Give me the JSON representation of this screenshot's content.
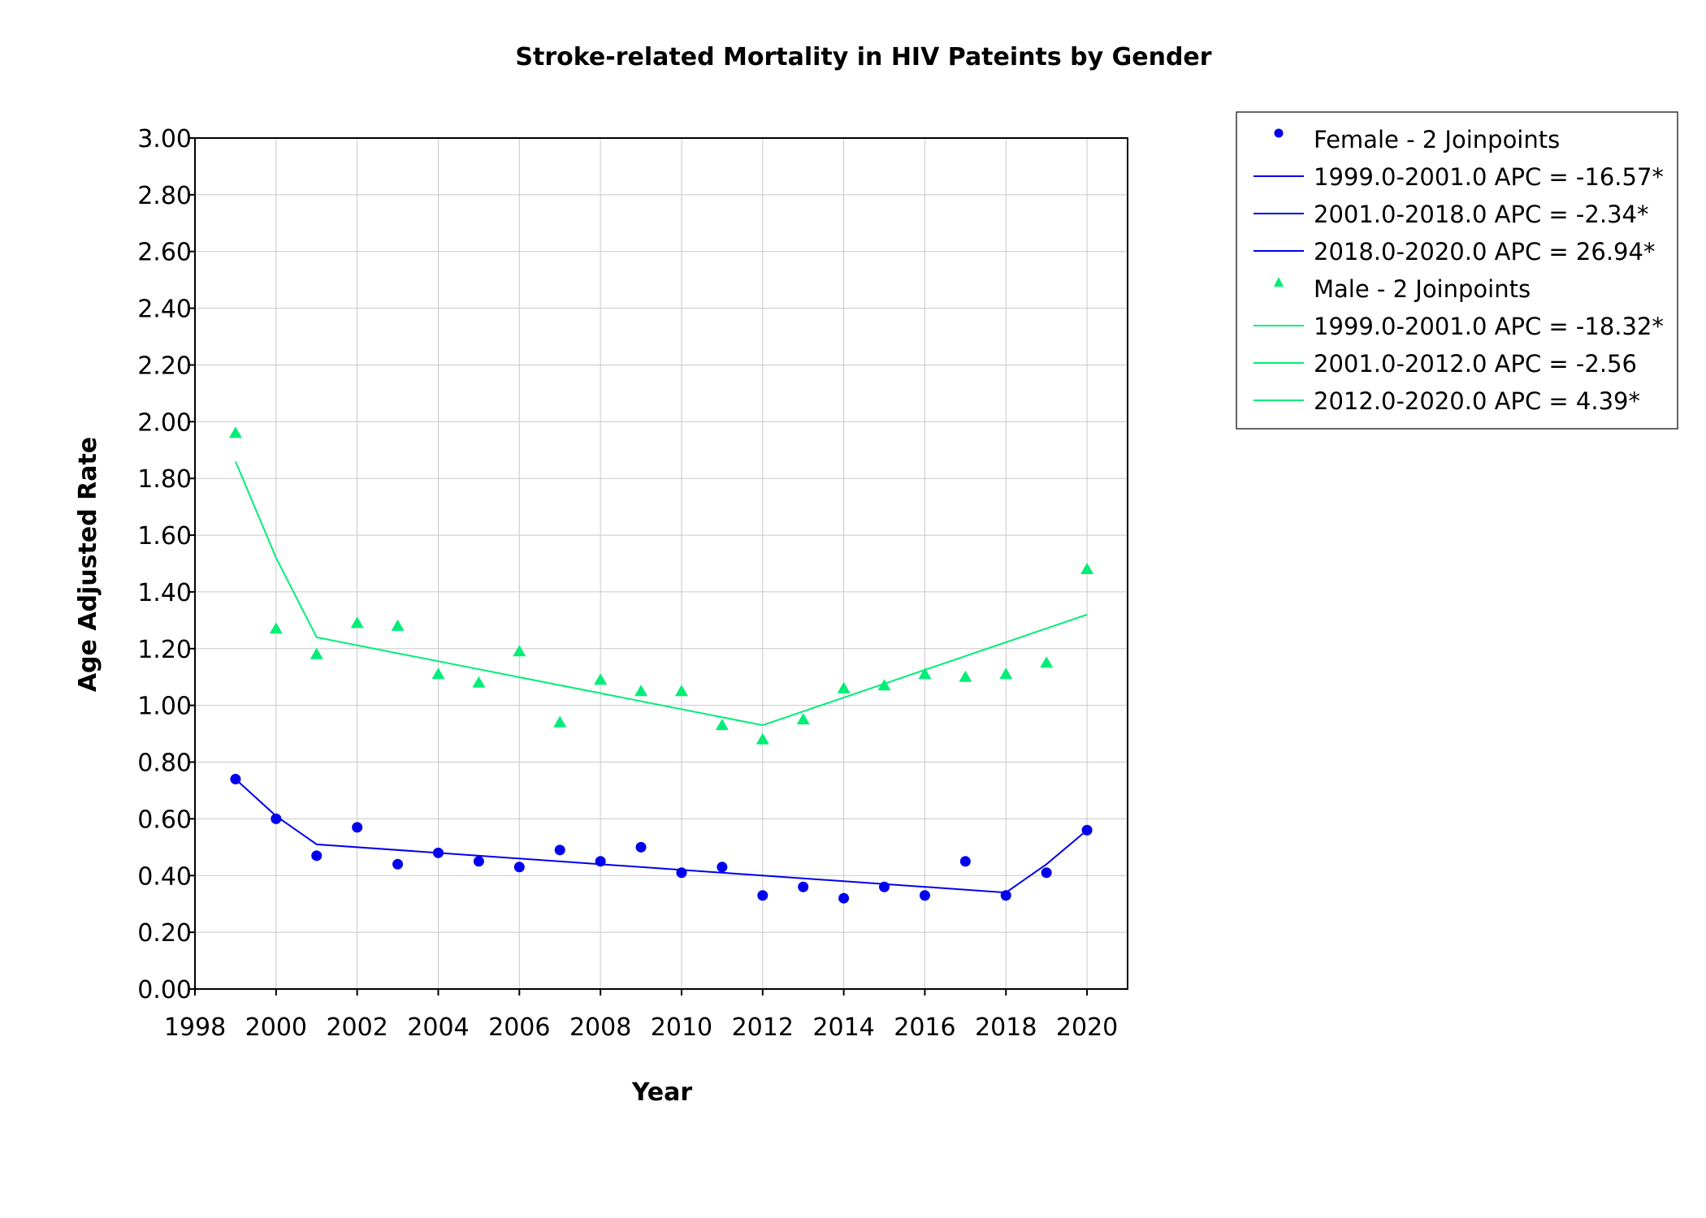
{
  "chart_data": {
    "type": "scatter",
    "title": "Stroke-related Mortality in HIV Pateints by Gender",
    "xlabel": "Year",
    "ylabel": "Age Adjusted Rate",
    "xlim": [
      1998,
      2021
    ],
    "ylim": [
      0,
      3.0
    ],
    "grid": true,
    "legend_position": "right-top, outside plot",
    "x_ticks": [
      "1998",
      "2000",
      "2002",
      "2004",
      "2006",
      "2008",
      "2010",
      "2012",
      "2014",
      "2016",
      "2018",
      "2020"
    ],
    "y_ticks": [
      "0.00",
      "0.20",
      "0.40",
      "0.60",
      "0.80",
      "1.00",
      "1.20",
      "1.40",
      "1.60",
      "1.80",
      "2.00",
      "2.20",
      "2.40",
      "2.60",
      "2.80",
      "3.00"
    ],
    "series": [
      {
        "name": "Female - 2 Joinpoints",
        "marker": "circle",
        "color": "#0000ee",
        "x": [
          1999,
          2000,
          2001,
          2002,
          2003,
          2004,
          2005,
          2006,
          2007,
          2008,
          2009,
          2010,
          2011,
          2012,
          2013,
          2014,
          2015,
          2016,
          2017,
          2018,
          2019,
          2020
        ],
        "observed": [
          0.74,
          0.6,
          0.47,
          0.57,
          0.44,
          0.48,
          0.45,
          0.43,
          0.49,
          0.45,
          0.5,
          0.41,
          0.43,
          0.33,
          0.36,
          0.32,
          0.36,
          0.33,
          0.45,
          0.33,
          0.41,
          0.56
        ],
        "fitted_x": [
          1999,
          2000,
          2001,
          2018,
          2019,
          2020
        ],
        "fitted": [
          0.74,
          0.61,
          0.51,
          0.34,
          0.44,
          0.56
        ],
        "segments": [
          {
            "label": "1999.0-2001.0 APC  =  -16.57*"
          },
          {
            "label": "2001.0-2018.0 APC  =   -2.34*"
          },
          {
            "label": "2018.0-2020.0 APC  =  26.94*"
          }
        ]
      },
      {
        "name": "Male - 2 Joinpoints",
        "marker": "triangle",
        "color": "#00ee76",
        "x": [
          1999,
          2000,
          2001,
          2002,
          2003,
          2004,
          2005,
          2006,
          2007,
          2008,
          2009,
          2010,
          2011,
          2012,
          2013,
          2014,
          2015,
          2016,
          2017,
          2018,
          2019,
          2020
        ],
        "observed": [
          1.96,
          1.27,
          1.18,
          1.29,
          1.28,
          1.11,
          1.08,
          1.19,
          0.94,
          1.09,
          1.05,
          1.05,
          0.93,
          0.88,
          0.95,
          1.06,
          1.07,
          1.11,
          1.1,
          1.11,
          1.15,
          1.48
        ],
        "fitted_x": [
          1999,
          2000,
          2001,
          2012,
          2020
        ],
        "fitted": [
          1.86,
          1.52,
          1.24,
          0.93,
          1.32
        ],
        "segments": [
          {
            "label": "1999.0-2001.0 APC  =  -18.32*"
          },
          {
            "label": "2001.0-2012.0 APC  =   -2.56"
          },
          {
            "label": "2012.0-2020.0 APC  =    4.39*"
          }
        ]
      }
    ]
  }
}
